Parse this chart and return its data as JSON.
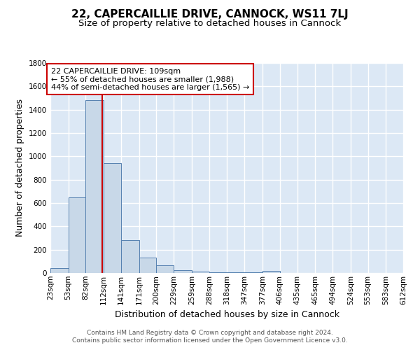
{
  "title": "22, CAPERCAILLIE DRIVE, CANNOCK, WS11 7LJ",
  "subtitle": "Size of property relative to detached houses in Cannock",
  "xlabel": "Distribution of detached houses by size in Cannock",
  "ylabel": "Number of detached properties",
  "footnote1": "Contains HM Land Registry data © Crown copyright and database right 2024.",
  "footnote2": "Contains public sector information licensed under the Open Government Licence v3.0.",
  "bin_edges": [
    23,
    53,
    82,
    112,
    141,
    171,
    200,
    229,
    259,
    288,
    318,
    347,
    377,
    406,
    435,
    465,
    494,
    524,
    553,
    583,
    612
  ],
  "bin_labels": [
    "23sqm",
    "53sqm",
    "82sqm",
    "112sqm",
    "141sqm",
    "171sqm",
    "200sqm",
    "229sqm",
    "259sqm",
    "288sqm",
    "318sqm",
    "347sqm",
    "377sqm",
    "406sqm",
    "435sqm",
    "465sqm",
    "494sqm",
    "524sqm",
    "553sqm",
    "583sqm",
    "612sqm"
  ],
  "bar_heights": [
    40,
    650,
    1480,
    940,
    285,
    130,
    65,
    25,
    12,
    8,
    5,
    4,
    18,
    0,
    0,
    0,
    0,
    0,
    0,
    0
  ],
  "bar_color": "#c8d8e8",
  "bar_edge_color": "#5580b0",
  "background_color": "#dce8f5",
  "grid_color": "#ffffff",
  "property_line_x": 109,
  "property_line_color": "#cc0000",
  "annotation_text": "22 CAPERCAILLIE DRIVE: 109sqm\n← 55% of detached houses are smaller (1,988)\n44% of semi-detached houses are larger (1,565) →",
  "annotation_box_color": "#ffffff",
  "annotation_box_edge_color": "#cc0000",
  "ylim": [
    0,
    1800
  ],
  "title_fontsize": 11,
  "subtitle_fontsize": 9.5,
  "axis_label_fontsize": 9,
  "tick_fontsize": 7.5,
  "annotation_fontsize": 8,
  "footnote_fontsize": 6.5
}
